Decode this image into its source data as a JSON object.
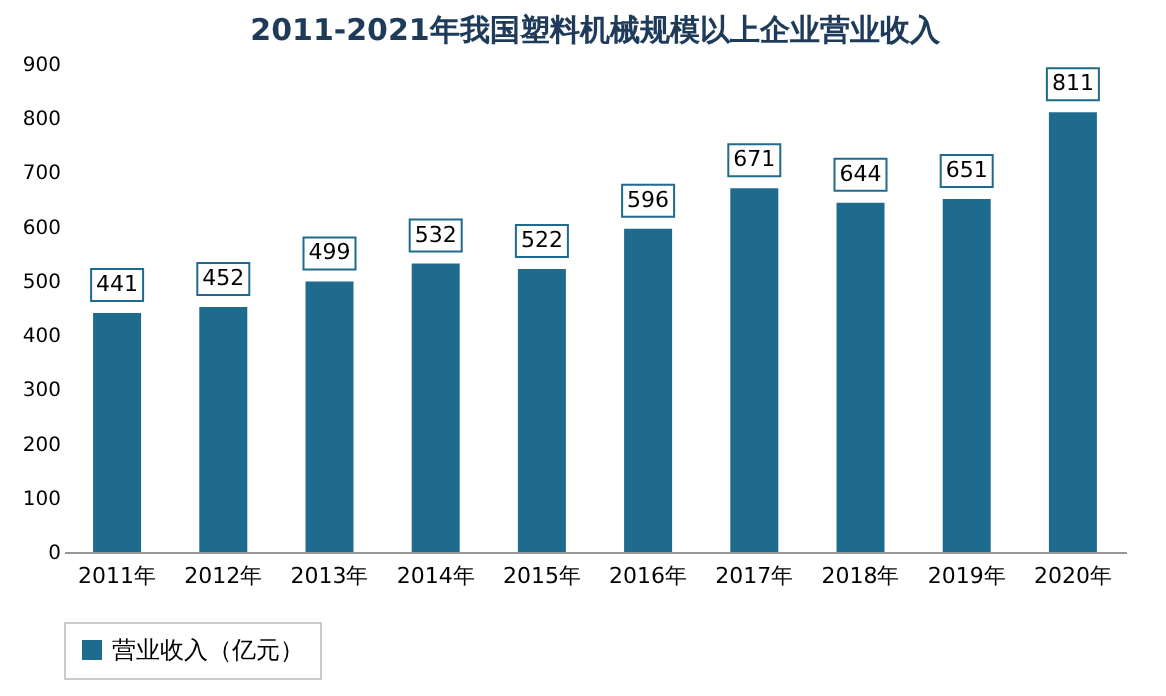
{
  "chart_data": {
    "type": "bar",
    "title": "2011-2021年我国塑料机械规模以上企业营业收入",
    "categories": [
      "2011年",
      "2012年",
      "2013年",
      "2014年",
      "2015年",
      "2016年",
      "2017年",
      "2018年",
      "2019年",
      "2020年"
    ],
    "series": [
      {
        "name": "营业收入（亿元）",
        "color": "#1f6b8e",
        "values": [
          441,
          452,
          499,
          532,
          522,
          596,
          671,
          644,
          651,
          811
        ]
      }
    ],
    "ylim": [
      0,
      900
    ],
    "yticks": [
      0,
      100,
      200,
      300,
      400,
      500,
      600,
      700,
      800,
      900
    ],
    "grid": false,
    "legend": "bottom",
    "data_labels": true
  }
}
